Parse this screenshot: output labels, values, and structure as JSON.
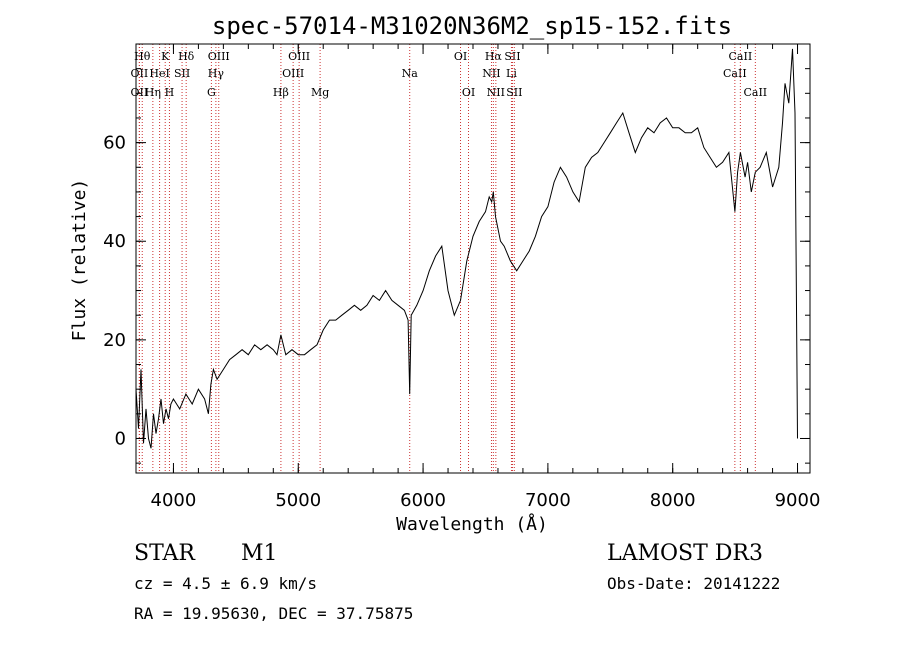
{
  "chart_data": {
    "type": "line",
    "title": "spec-57014-M31020N36M2_sp15-152.fits",
    "xlabel": "Wavelength (Å)",
    "ylabel": "Flux (relative)",
    "xlim": [
      3700,
      9100
    ],
    "ylim": [
      -7,
      80
    ],
    "x_ticks": [
      4000,
      5000,
      6000,
      7000,
      8000,
      9000
    ],
    "x_tick_labels": [
      "4000",
      "5000",
      "6000",
      "7000",
      "8000",
      "9000"
    ],
    "y_ticks": [
      0,
      20,
      40,
      60
    ],
    "y_tick_labels": [
      "0",
      "20",
      "40",
      "60"
    ],
    "grid": false,
    "line_color": "#000000",
    "marker_color": "#cc3333",
    "series": [
      {
        "name": "flux",
        "x": [
          3700,
          3720,
          3740,
          3760,
          3780,
          3800,
          3820,
          3840,
          3860,
          3880,
          3900,
          3920,
          3940,
          3960,
          3980,
          4000,
          4050,
          4100,
          4150,
          4200,
          4250,
          4280,
          4300,
          4320,
          4350,
          4400,
          4450,
          4500,
          4550,
          4600,
          4650,
          4700,
          4750,
          4800,
          4830,
          4861,
          4880,
          4900,
          4950,
          5000,
          5050,
          5100,
          5150,
          5200,
          5250,
          5300,
          5350,
          5400,
          5450,
          5500,
          5550,
          5600,
          5650,
          5700,
          5750,
          5800,
          5850,
          5880,
          5893,
          5905,
          5950,
          6000,
          6050,
          6100,
          6150,
          6200,
          6250,
          6300,
          6350,
          6400,
          6450,
          6500,
          6530,
          6550,
          6563,
          6580,
          6620,
          6650,
          6700,
          6750,
          6800,
          6850,
          6900,
          6950,
          7000,
          7050,
          7100,
          7150,
          7200,
          7250,
          7300,
          7350,
          7400,
          7450,
          7500,
          7550,
          7600,
          7650,
          7700,
          7750,
          7800,
          7850,
          7900,
          7950,
          8000,
          8050,
          8100,
          8150,
          8200,
          8250,
          8300,
          8350,
          8400,
          8450,
          8498,
          8520,
          8542,
          8580,
          8600,
          8630,
          8662,
          8700,
          8750,
          8800,
          8850,
          8880,
          8900,
          8930,
          8960,
          8980,
          9000
        ],
        "y": [
          10,
          2,
          14,
          -1,
          6,
          0,
          -2,
          5,
          1,
          4,
          8,
          3,
          6,
          4,
          7,
          8,
          6,
          9,
          7,
          10,
          8,
          5,
          11,
          14,
          12,
          14,
          16,
          17,
          18,
          17,
          19,
          18,
          19,
          18,
          17,
          21,
          19,
          17,
          18,
          17,
          17,
          18,
          19,
          22,
          24,
          24,
          25,
          26,
          27,
          26,
          27,
          29,
          28,
          30,
          28,
          27,
          26,
          24,
          9,
          25,
          27,
          30,
          34,
          37,
          39,
          30,
          25,
          28,
          36,
          41,
          44,
          46,
          49,
          48,
          50,
          45,
          40,
          39,
          36,
          34,
          36,
          38,
          41,
          45,
          47,
          52,
          55,
          53,
          50,
          48,
          55,
          57,
          58,
          60,
          62,
          64,
          66,
          62,
          58,
          61,
          63,
          62,
          64,
          65,
          63,
          63,
          62,
          62,
          63,
          59,
          57,
          55,
          56,
          58,
          46,
          54,
          58,
          53,
          56,
          50,
          54,
          55,
          58,
          51,
          55,
          64,
          72,
          68,
          79,
          66,
          0
        ]
      }
    ],
    "line_markers": [
      {
        "x": 3750,
        "label": "Hθ",
        "row": 1
      },
      {
        "x": 3727,
        "label": "OII",
        "row": 2
      },
      {
        "x": 3727,
        "label": "OII",
        "row": 3
      },
      {
        "x": 3889,
        "label": "HeI",
        "row": 2
      },
      {
        "x": 3835,
        "label": "Hη",
        "row": 3
      },
      {
        "x": 3934,
        "label": "K",
        "row": 1
      },
      {
        "x": 3968,
        "label": "H",
        "row": 3
      },
      {
        "x": 4069,
        "label": "SII",
        "row": 2
      },
      {
        "x": 4102,
        "label": "Hδ",
        "row": 1
      },
      {
        "x": 4340,
        "label": "Hγ",
        "row": 2
      },
      {
        "x": 4304,
        "label": "G",
        "row": 3
      },
      {
        "x": 4363,
        "label": "OIII",
        "row": 1
      },
      {
        "x": 4861,
        "label": "Hβ",
        "row": 3
      },
      {
        "x": 4959,
        "label": "OIII",
        "row": 2
      },
      {
        "x": 5007,
        "label": "OIII",
        "row": 1
      },
      {
        "x": 5175,
        "label": "Mg",
        "row": 3
      },
      {
        "x": 5893,
        "label": "Na",
        "row": 2
      },
      {
        "x": 6300,
        "label": "OI",
        "row": 1
      },
      {
        "x": 6364,
        "label": "OI",
        "row": 3
      },
      {
        "x": 6548,
        "label": "NII",
        "row": 2
      },
      {
        "x": 6563,
        "label": "Hα",
        "row": 1
      },
      {
        "x": 6583,
        "label": "NII",
        "row": 3
      },
      {
        "x": 6708,
        "label": "Li",
        "row": 2
      },
      {
        "x": 6716,
        "label": "SII",
        "row": 1
      },
      {
        "x": 6731,
        "label": "SII",
        "row": 3
      },
      {
        "x": 8498,
        "label": "CaII",
        "row": 2
      },
      {
        "x": 8542,
        "label": "CaII",
        "row": 1
      },
      {
        "x": 8662,
        "label": "CaII",
        "row": 3
      }
    ]
  },
  "info": {
    "class_label": "STAR",
    "subclass": "M1",
    "survey": "LAMOST DR3",
    "cz": "cz = 4.5 ± 6.9 km/s",
    "obs_date": "Obs-Date: 20141222",
    "coords": "RA =  19.95630, DEC =  37.75875"
  }
}
